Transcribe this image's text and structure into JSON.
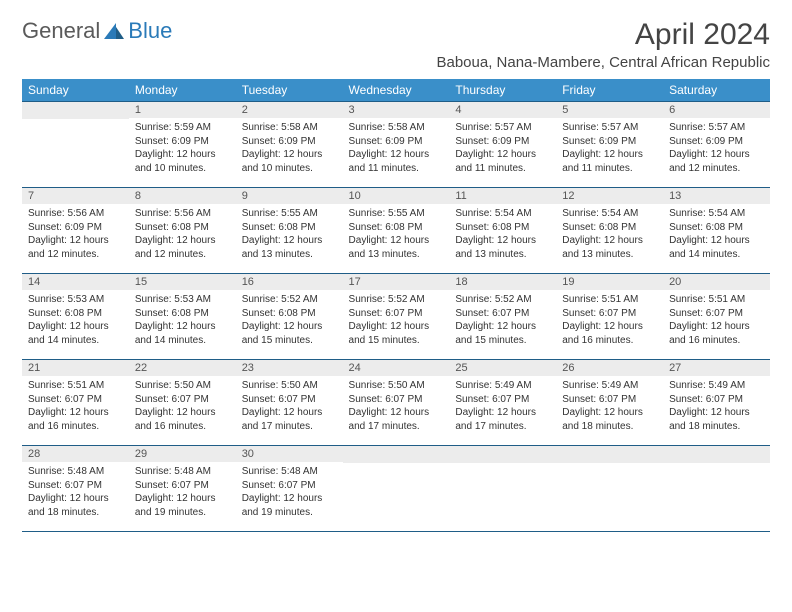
{
  "logo": {
    "text_a": "General",
    "text_b": "Blue"
  },
  "title": "April 2024",
  "location": "Baboua, Nana-Mambere, Central African Republic",
  "colors": {
    "header_bg": "#3a8fc9",
    "header_text": "#ffffff",
    "daynum_bg": "#ececec",
    "rule": "#1f5d87",
    "body_text": "#333333",
    "logo_gray": "#5a5a5a",
    "logo_blue": "#2a7ab8"
  },
  "typography": {
    "month_title_pt": 30,
    "location_pt": 15,
    "dayhead_pt": 12,
    "daynum_pt": 11,
    "cell_pt": 10
  },
  "day_names": [
    "Sunday",
    "Monday",
    "Tuesday",
    "Wednesday",
    "Thursday",
    "Friday",
    "Saturday"
  ],
  "weeks": [
    [
      null,
      {
        "n": "1",
        "sr": "5:59 AM",
        "ss": "6:09 PM",
        "dl": "12 hours and 10 minutes."
      },
      {
        "n": "2",
        "sr": "5:58 AM",
        "ss": "6:09 PM",
        "dl": "12 hours and 10 minutes."
      },
      {
        "n": "3",
        "sr": "5:58 AM",
        "ss": "6:09 PM",
        "dl": "12 hours and 11 minutes."
      },
      {
        "n": "4",
        "sr": "5:57 AM",
        "ss": "6:09 PM",
        "dl": "12 hours and 11 minutes."
      },
      {
        "n": "5",
        "sr": "5:57 AM",
        "ss": "6:09 PM",
        "dl": "12 hours and 11 minutes."
      },
      {
        "n": "6",
        "sr": "5:57 AM",
        "ss": "6:09 PM",
        "dl": "12 hours and 12 minutes."
      }
    ],
    [
      {
        "n": "7",
        "sr": "5:56 AM",
        "ss": "6:09 PM",
        "dl": "12 hours and 12 minutes."
      },
      {
        "n": "8",
        "sr": "5:56 AM",
        "ss": "6:08 PM",
        "dl": "12 hours and 12 minutes."
      },
      {
        "n": "9",
        "sr": "5:55 AM",
        "ss": "6:08 PM",
        "dl": "12 hours and 13 minutes."
      },
      {
        "n": "10",
        "sr": "5:55 AM",
        "ss": "6:08 PM",
        "dl": "12 hours and 13 minutes."
      },
      {
        "n": "11",
        "sr": "5:54 AM",
        "ss": "6:08 PM",
        "dl": "12 hours and 13 minutes."
      },
      {
        "n": "12",
        "sr": "5:54 AM",
        "ss": "6:08 PM",
        "dl": "12 hours and 13 minutes."
      },
      {
        "n": "13",
        "sr": "5:54 AM",
        "ss": "6:08 PM",
        "dl": "12 hours and 14 minutes."
      }
    ],
    [
      {
        "n": "14",
        "sr": "5:53 AM",
        "ss": "6:08 PM",
        "dl": "12 hours and 14 minutes."
      },
      {
        "n": "15",
        "sr": "5:53 AM",
        "ss": "6:08 PM",
        "dl": "12 hours and 14 minutes."
      },
      {
        "n": "16",
        "sr": "5:52 AM",
        "ss": "6:08 PM",
        "dl": "12 hours and 15 minutes."
      },
      {
        "n": "17",
        "sr": "5:52 AM",
        "ss": "6:07 PM",
        "dl": "12 hours and 15 minutes."
      },
      {
        "n": "18",
        "sr": "5:52 AM",
        "ss": "6:07 PM",
        "dl": "12 hours and 15 minutes."
      },
      {
        "n": "19",
        "sr": "5:51 AM",
        "ss": "6:07 PM",
        "dl": "12 hours and 16 minutes."
      },
      {
        "n": "20",
        "sr": "5:51 AM",
        "ss": "6:07 PM",
        "dl": "12 hours and 16 minutes."
      }
    ],
    [
      {
        "n": "21",
        "sr": "5:51 AM",
        "ss": "6:07 PM",
        "dl": "12 hours and 16 minutes."
      },
      {
        "n": "22",
        "sr": "5:50 AM",
        "ss": "6:07 PM",
        "dl": "12 hours and 16 minutes."
      },
      {
        "n": "23",
        "sr": "5:50 AM",
        "ss": "6:07 PM",
        "dl": "12 hours and 17 minutes."
      },
      {
        "n": "24",
        "sr": "5:50 AM",
        "ss": "6:07 PM",
        "dl": "12 hours and 17 minutes."
      },
      {
        "n": "25",
        "sr": "5:49 AM",
        "ss": "6:07 PM",
        "dl": "12 hours and 17 minutes."
      },
      {
        "n": "26",
        "sr": "5:49 AM",
        "ss": "6:07 PM",
        "dl": "12 hours and 18 minutes."
      },
      {
        "n": "27",
        "sr": "5:49 AM",
        "ss": "6:07 PM",
        "dl": "12 hours and 18 minutes."
      }
    ],
    [
      {
        "n": "28",
        "sr": "5:48 AM",
        "ss": "6:07 PM",
        "dl": "12 hours and 18 minutes."
      },
      {
        "n": "29",
        "sr": "5:48 AM",
        "ss": "6:07 PM",
        "dl": "12 hours and 19 minutes."
      },
      {
        "n": "30",
        "sr": "5:48 AM",
        "ss": "6:07 PM",
        "dl": "12 hours and 19 minutes."
      },
      null,
      null,
      null,
      null
    ]
  ],
  "labels": {
    "sunrise": "Sunrise:",
    "sunset": "Sunset:",
    "daylight": "Daylight:"
  }
}
